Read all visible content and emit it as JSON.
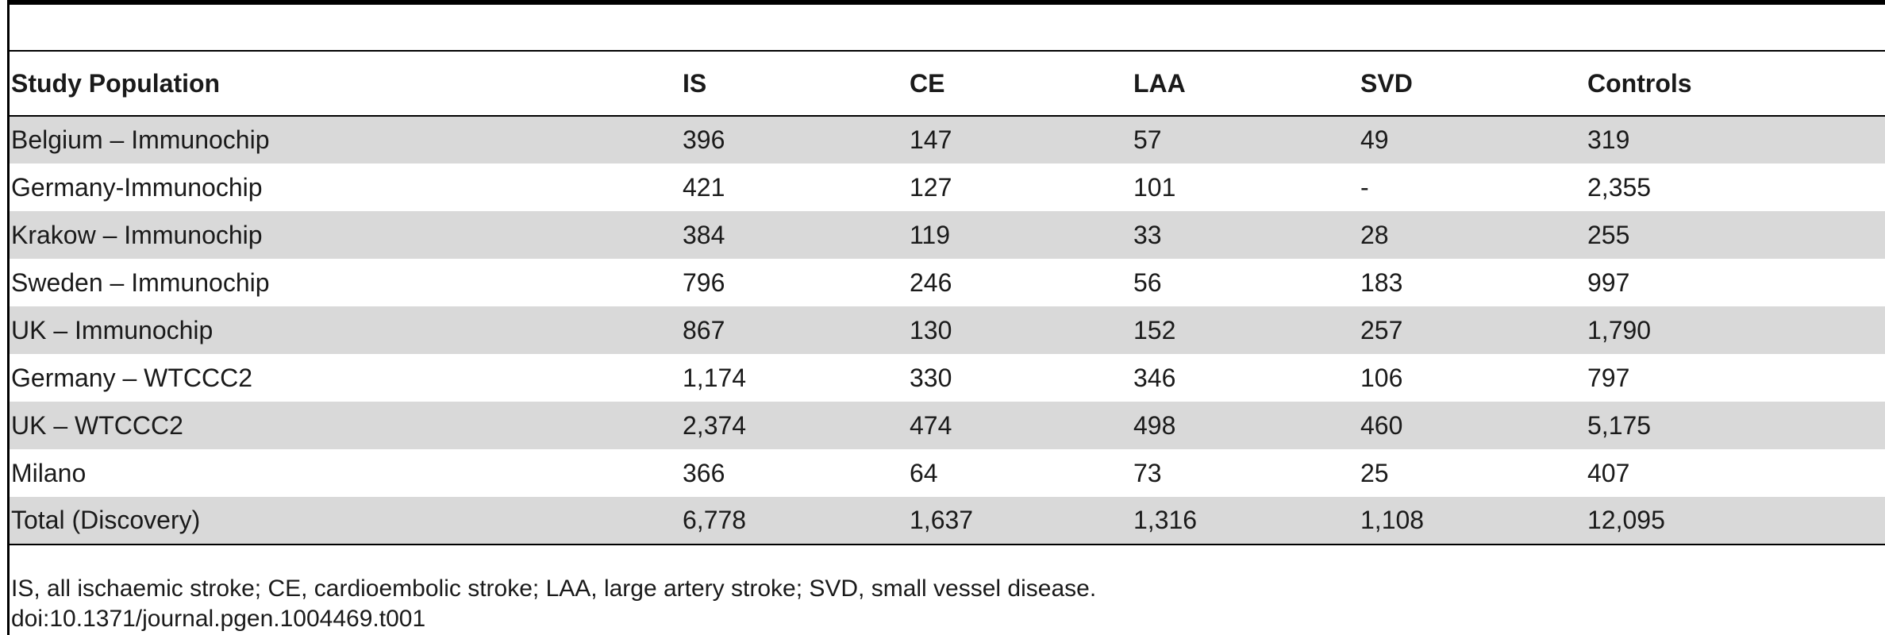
{
  "table": {
    "headers": [
      "Study Population",
      "IS",
      "CE",
      "LAA",
      "SVD",
      "Controls"
    ],
    "rows": [
      [
        "Belgium – Immunochip",
        "396",
        "147",
        "57",
        "49",
        "319"
      ],
      [
        "Germany-Immunochip",
        "421",
        "127",
        "101",
        "-",
        "2,355"
      ],
      [
        "Krakow – Immunochip",
        "384",
        "119",
        "33",
        "28",
        "255"
      ],
      [
        "Sweden – Immunochip",
        "796",
        "246",
        "56",
        "183",
        "997"
      ],
      [
        "UK – Immunochip",
        "867",
        "130",
        "152",
        "257",
        "1,790"
      ],
      [
        "Germany – WTCCC2",
        "1,174",
        "330",
        "346",
        "106",
        "797"
      ],
      [
        "UK – WTCCC2",
        "2,374",
        "474",
        "498",
        "460",
        "5,175"
      ],
      [
        "Milano",
        "366",
        "64",
        "73",
        "25",
        "407"
      ],
      [
        "Total (Discovery)",
        "6,778",
        "1,637",
        "1,316",
        "1,108",
        "12,095"
      ]
    ],
    "shaded_row_color": "#d9d9d9"
  },
  "footnote": {
    "abbreviations": "IS, all ischaemic stroke; CE, cardioembolic stroke; LAA, large artery stroke; SVD, small vessel disease.",
    "doi": "doi:10.1371/journal.pgen.1004469.t001"
  }
}
